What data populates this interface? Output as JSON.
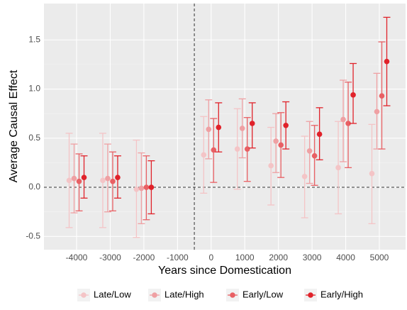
{
  "chart_data": {
    "type": "errorbar",
    "x_label": "Years since Domestication",
    "y_label": "Average Causal Effect",
    "x": [
      -4000,
      -3000,
      -2000,
      -1000,
      0,
      1000,
      2000,
      3000,
      4000,
      5000
    ],
    "xlim": [
      -4970,
      5780
    ],
    "xticks": [
      -4000,
      -3000,
      -2000,
      -1000,
      0,
      1000,
      2000,
      3000,
      4000,
      5000
    ],
    "ylim": [
      -0.635,
      1.87
    ],
    "yticks": [
      -0.5,
      {
        "value": 0,
        "label": "0.0"
      },
      0.5,
      {
        "value": 1,
        "label": "1.0"
      },
      1.5
    ],
    "vline": -500,
    "hline": 0,
    "grid": true,
    "legend": "bottom",
    "series": [
      {
        "name": "Late/Low",
        "color": "#f4c4c6",
        "values": [
          0.07,
          0.07,
          -0.02,
          null,
          0.33,
          0.39,
          0.22,
          0.11,
          0.2,
          0.14
        ],
        "lower": [
          -0.41,
          -0.41,
          -0.51,
          null,
          -0.06,
          -0.02,
          -0.18,
          -0.31,
          -0.27,
          -0.37
        ],
        "upper": [
          0.55,
          0.55,
          0.48,
          null,
          0.72,
          0.8,
          0.61,
          0.52,
          0.67,
          0.64
        ]
      },
      {
        "name": "Late/High",
        "color": "#efa0a3",
        "values": [
          0.09,
          0.09,
          -0.01,
          null,
          0.59,
          0.6,
          0.47,
          0.37,
          0.69,
          0.77
        ],
        "lower": [
          -0.26,
          -0.25,
          -0.37,
          null,
          0.29,
          0.3,
          0.15,
          0.04,
          0.26,
          0.39
        ],
        "upper": [
          0.44,
          0.44,
          0.35,
          null,
          0.89,
          0.9,
          0.75,
          0.67,
          1.09,
          1.16
        ]
      },
      {
        "name": "Early/Low",
        "color": "#e86064",
        "values": [
          0.06,
          0.06,
          0.0,
          null,
          0.38,
          0.39,
          0.43,
          0.32,
          0.65,
          0.93
        ],
        "lower": [
          -0.24,
          -0.24,
          -0.33,
          null,
          0.05,
          0.06,
          0.1,
          0.02,
          0.2,
          0.39
        ],
        "upper": [
          0.34,
          0.36,
          0.32,
          null,
          0.7,
          0.71,
          0.76,
          0.63,
          1.07,
          1.48
        ]
      },
      {
        "name": "Early/High",
        "color": "#e0222a",
        "values": [
          0.1,
          0.1,
          0.0,
          null,
          0.61,
          0.65,
          0.63,
          0.54,
          0.94,
          1.28
        ],
        "lower": [
          -0.11,
          -0.11,
          -0.27,
          null,
          0.36,
          0.4,
          0.39,
          0.28,
          0.65,
          0.83
        ],
        "upper": [
          0.32,
          0.32,
          0.27,
          null,
          0.86,
          0.86,
          0.87,
          0.81,
          1.26,
          1.73
        ]
      }
    ]
  }
}
